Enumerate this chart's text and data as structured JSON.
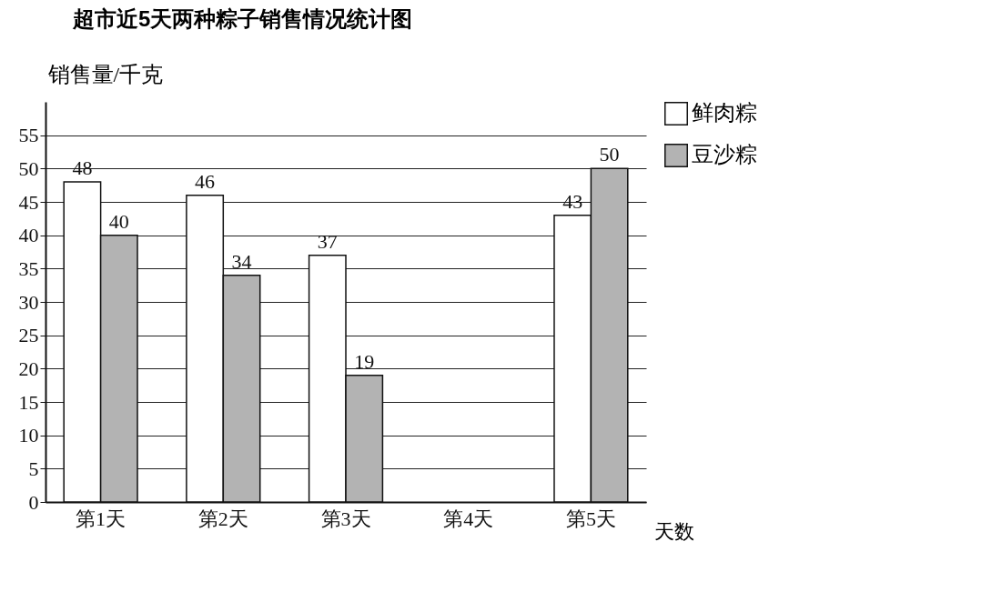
{
  "chart_data": {
    "type": "bar",
    "title": "超市近5天两种粽子销售情况统计图",
    "xlabel": "天数",
    "ylabel": "销售量/千克",
    "categories": [
      "第1天",
      "第2天",
      "第3天",
      "第4天",
      "第5天"
    ],
    "series": [
      {
        "name": "鲜肉粽",
        "color": "#ffffff",
        "values": [
          48,
          46,
          37,
          null,
          43
        ]
      },
      {
        "name": "豆沙粽",
        "color": "#b3b3b3",
        "values": [
          40,
          34,
          19,
          null,
          50
        ]
      }
    ],
    "ylim": [
      0,
      60
    ],
    "yticks": [
      0,
      5,
      10,
      15,
      20,
      25,
      30,
      35,
      40,
      45,
      50,
      55
    ],
    "grid": "y",
    "legend": "top right",
    "data_labels": true
  }
}
